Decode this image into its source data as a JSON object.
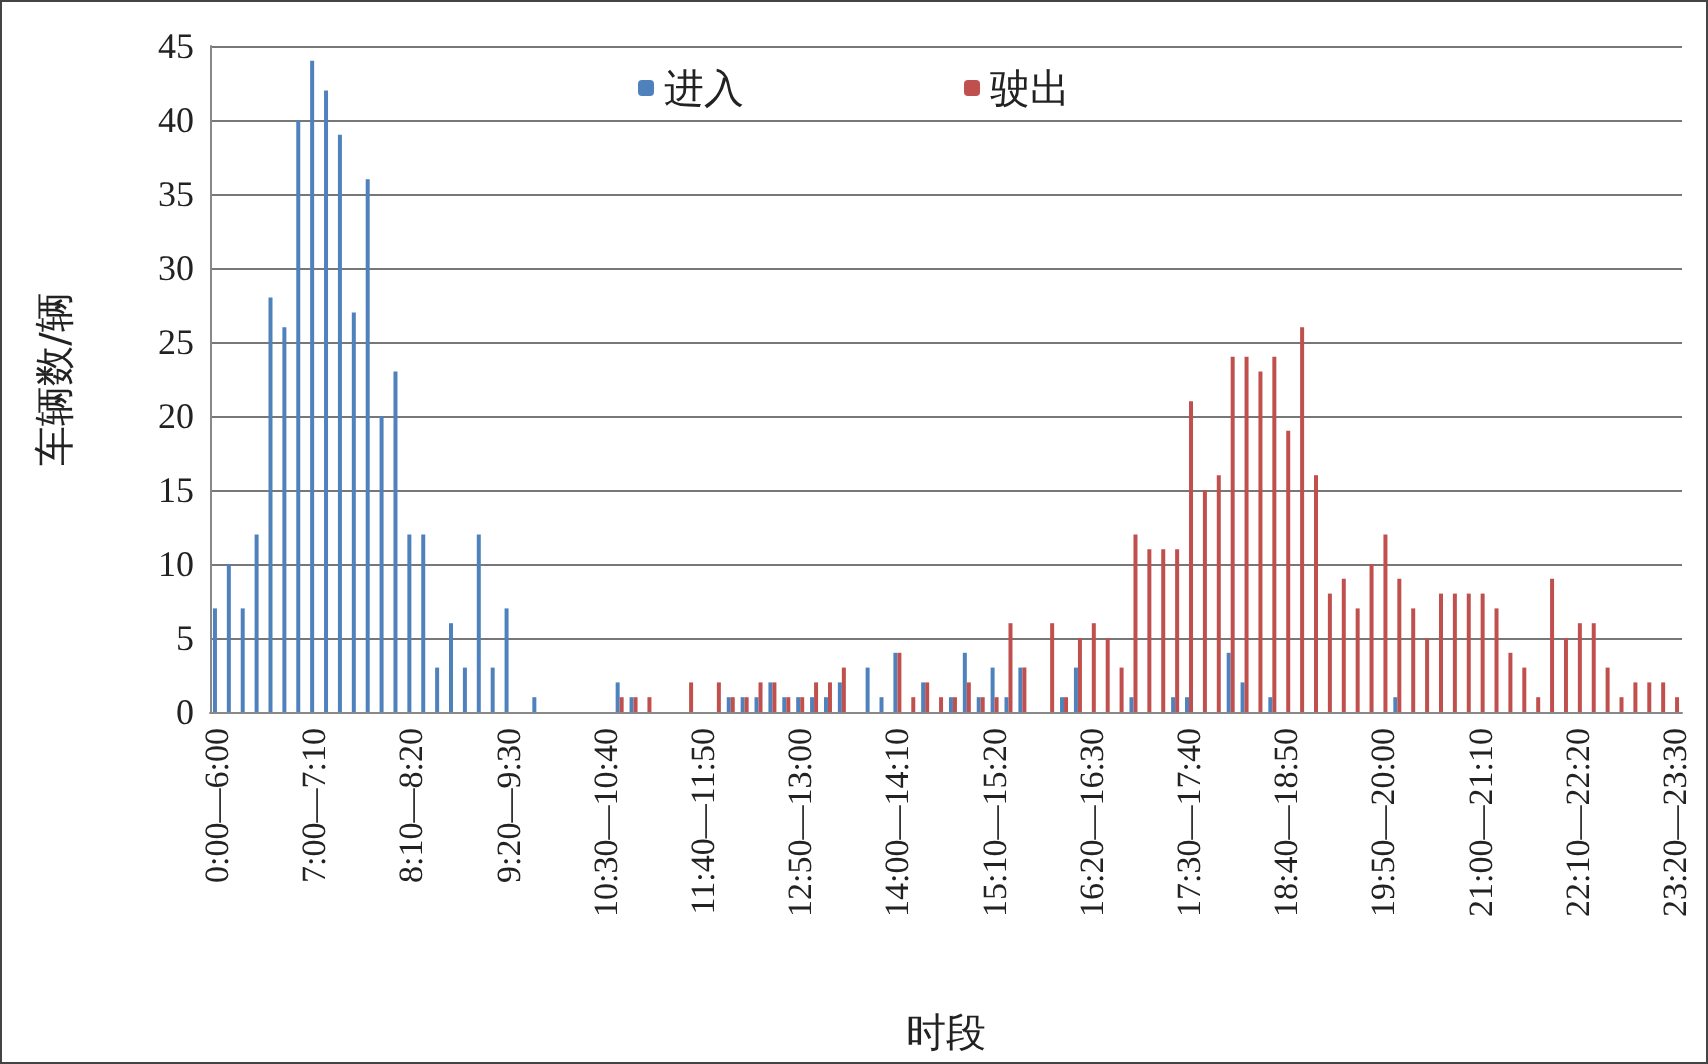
{
  "chart_data": {
    "type": "bar",
    "xlabel": "时段",
    "ylabel": "车辆数/辆",
    "categories": [
      "0:00—6:00",
      null,
      null,
      null,
      null,
      null,
      null,
      "7:00—7:10",
      null,
      null,
      null,
      null,
      null,
      null,
      "8:10—8:20",
      null,
      null,
      null,
      null,
      null,
      null,
      "9:20—9:30",
      null,
      null,
      null,
      null,
      null,
      null,
      "10:30—10:40",
      null,
      null,
      null,
      null,
      null,
      null,
      "11:40—11:50",
      null,
      null,
      null,
      null,
      null,
      null,
      "12:50—13:00",
      null,
      null,
      null,
      null,
      null,
      null,
      "14:00—14:10",
      null,
      null,
      null,
      null,
      null,
      null,
      "15:10—15:20",
      null,
      null,
      null,
      null,
      null,
      null,
      "16:20—16:30",
      null,
      null,
      null,
      null,
      null,
      null,
      "17:30—17:40",
      null,
      null,
      null,
      null,
      null,
      null,
      "18:40—18:50",
      null,
      null,
      null,
      null,
      null,
      null,
      "19:50—20:00",
      null,
      null,
      null,
      null,
      null,
      null,
      "21:00—21:10",
      null,
      null,
      null,
      null,
      null,
      null,
      "22:10—22:20",
      null,
      null,
      null,
      null,
      null,
      null,
      "23:20—23:30"
    ],
    "series": [
      {
        "name": "进入",
        "color": "#4f81bd",
        "values": [
          7,
          10,
          7,
          12,
          28,
          26,
          40,
          44,
          42,
          39,
          27,
          36,
          20,
          23,
          12,
          12,
          3,
          6,
          3,
          12,
          3,
          7,
          0,
          1,
          0,
          0,
          0,
          0,
          0,
          2,
          1,
          0,
          0,
          0,
          0,
          0,
          0,
          1,
          1,
          1,
          2,
          1,
          1,
          1,
          1,
          2,
          0,
          3,
          1,
          4,
          0,
          2,
          0,
          1,
          4,
          1,
          3,
          1,
          3,
          0,
          0,
          1,
          3,
          0,
          0,
          0,
          1,
          0,
          0,
          1,
          1,
          0,
          0,
          4,
          2,
          0,
          1,
          0,
          0,
          0,
          0,
          0,
          0,
          0,
          0,
          1,
          0,
          0,
          0,
          0,
          0,
          0,
          0,
          0,
          0,
          0,
          0,
          0,
          0,
          0,
          0,
          0,
          0,
          0,
          0,
          0
        ]
      },
      {
        "name": "驶出",
        "color": "#c0504d",
        "values": [
          0,
          0,
          0,
          0,
          0,
          0,
          0,
          0,
          0,
          0,
          0,
          0,
          0,
          0,
          0,
          0,
          0,
          0,
          0,
          0,
          0,
          0,
          0,
          0,
          0,
          0,
          0,
          0,
          0,
          1,
          1,
          1,
          0,
          0,
          2,
          0,
          2,
          1,
          1,
          2,
          2,
          1,
          1,
          2,
          2,
          3,
          0,
          0,
          0,
          4,
          1,
          2,
          1,
          1,
          2,
          1,
          1,
          6,
          3,
          0,
          6,
          1,
          5,
          6,
          5,
          3,
          12,
          11,
          11,
          11,
          21,
          15,
          16,
          24,
          24,
          23,
          24,
          19,
          26,
          16,
          8,
          9,
          7,
          10,
          12,
          9,
          7,
          5,
          8,
          8,
          8,
          8,
          7,
          4,
          3,
          1,
          9,
          5,
          6,
          6,
          3,
          1,
          2,
          2,
          2,
          1
        ]
      }
    ],
    "ylim": [
      0,
      45
    ],
    "yticks": [
      0,
      5,
      10,
      15,
      20,
      25,
      30,
      35,
      40,
      45
    ],
    "grid": "y",
    "legend": "top"
  }
}
